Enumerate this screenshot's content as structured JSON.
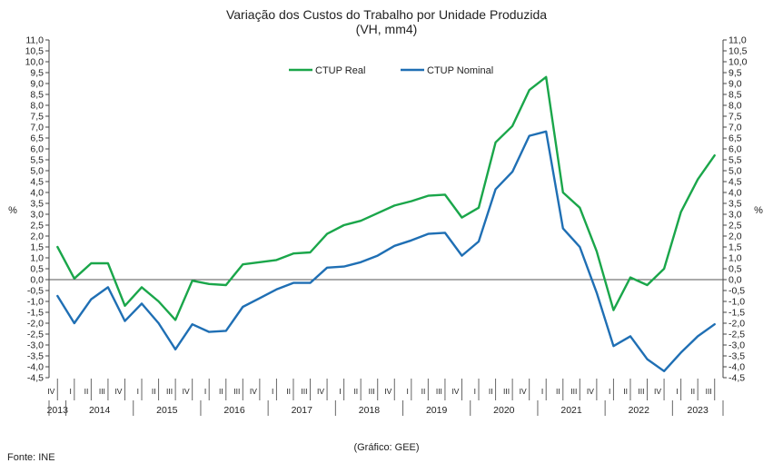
{
  "chart_data": {
    "type": "line",
    "title": "Variação dos Custos do Trabalho por Unidade Produzida",
    "subtitle": "(VH, mm4)",
    "ylabel": "%",
    "ylim": [
      -4.5,
      11.0
    ],
    "ytick_step": 0.5,
    "grid": false,
    "legend_position": "top-center",
    "x": [
      "IV",
      "I",
      "II",
      "III",
      "IV",
      "I",
      "II",
      "III",
      "IV",
      "I",
      "II",
      "III",
      "IV",
      "I",
      "II",
      "III",
      "IV",
      "I",
      "II",
      "III",
      "IV",
      "I",
      "II",
      "III",
      "IV",
      "I",
      "II",
      "III",
      "IV",
      "I",
      "II",
      "III",
      "IV",
      "I",
      "II",
      "III",
      "IV",
      "I",
      "II",
      "III"
    ],
    "years": [
      {
        "label": "2013",
        "start": 0,
        "count": 1
      },
      {
        "label": "2014",
        "start": 1,
        "count": 4
      },
      {
        "label": "2015",
        "start": 5,
        "count": 4
      },
      {
        "label": "2016",
        "start": 9,
        "count": 4
      },
      {
        "label": "2017",
        "start": 13,
        "count": 4
      },
      {
        "label": "2018",
        "start": 17,
        "count": 4
      },
      {
        "label": "2019",
        "start": 21,
        "count": 4
      },
      {
        "label": "2020",
        "start": 25,
        "count": 4
      },
      {
        "label": "2021",
        "start": 29,
        "count": 4
      },
      {
        "label": "2022",
        "start": 33,
        "count": 4
      },
      {
        "label": "2023",
        "start": 37,
        "count": 3
      }
    ],
    "series": [
      {
        "name": "CTUP Real",
        "color": "#1aa64a",
        "values": [
          1.5,
          0.05,
          0.75,
          0.75,
          -1.2,
          -0.35,
          -1.0,
          -1.85,
          -0.05,
          -0.2,
          -0.25,
          0.7,
          0.8,
          0.9,
          1.2,
          1.25,
          2.1,
          2.5,
          2.7,
          3.05,
          3.4,
          3.6,
          3.85,
          3.9,
          2.85,
          3.3,
          6.3,
          7.05,
          8.7,
          9.3,
          4.0,
          3.3,
          1.3,
          -1.4,
          0.1,
          -0.25,
          0.5,
          3.1,
          4.6,
          5.7
        ]
      },
      {
        "name": "CTUP Nominal",
        "color": "#1f6fb4",
        "values": [
          -0.75,
          -2.0,
          -0.9,
          -0.35,
          -1.9,
          -1.1,
          -2.0,
          -3.2,
          -2.05,
          -2.4,
          -2.35,
          -1.25,
          -0.85,
          -0.45,
          -0.15,
          -0.15,
          0.55,
          0.6,
          0.8,
          1.1,
          1.55,
          1.8,
          2.1,
          2.15,
          1.1,
          1.75,
          4.15,
          4.95,
          6.6,
          6.8,
          2.35,
          1.5,
          -0.6,
          -3.05,
          -2.6,
          -3.65,
          -4.2,
          -3.35,
          -2.6,
          -2.05
        ]
      }
    ]
  },
  "page": {
    "source": "Fonte: INE",
    "credit": "(Gráfico: GEE)"
  }
}
